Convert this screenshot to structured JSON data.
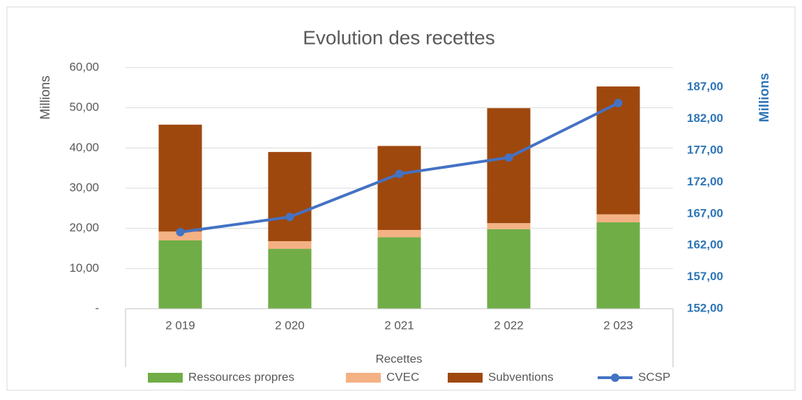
{
  "chart_data": {
    "type": "bar",
    "stacked": true,
    "title": "Evolution des recettes",
    "x_label": "Recettes",
    "y_label": "Millions",
    "y2_label": "Millions",
    "categories": [
      "2 019",
      "2 020",
      "2 021",
      "2 022",
      "2 023"
    ],
    "series": [
      {
        "name": "Ressources propres",
        "color": "#70ad47",
        "values": [
          17,
          14.9,
          17.8,
          19.8,
          21.5
        ]
      },
      {
        "name": "CVEC",
        "color": "#f4b183",
        "values": [
          2.2,
          1.9,
          1.8,
          1.5,
          2.0
        ]
      },
      {
        "name": "Subventions",
        "color": "#9e480e",
        "values": [
          26.6,
          22.2,
          20.9,
          28.6,
          31.8
        ]
      },
      {
        "name": "SCSP",
        "color": "#4472c4",
        "type": "line",
        "axis": "y2",
        "values": [
          164.1,
          166.5,
          173.3,
          175.9,
          184.5
        ]
      }
    ],
    "ylim": [
      0,
      60
    ],
    "yticks": [
      {
        "value": 0,
        "label": "-"
      },
      {
        "value": 10,
        "label": "10,00"
      },
      {
        "value": 20,
        "label": "20,00"
      },
      {
        "value": 30,
        "label": "30,00"
      },
      {
        "value": 40,
        "label": "40,00"
      },
      {
        "value": 50,
        "label": "50,00"
      },
      {
        "value": 60,
        "label": "60,00"
      }
    ],
    "y2lim": [
      152,
      190.1
    ],
    "y2ticks": [
      {
        "value": 152,
        "label": "152,00"
      },
      {
        "value": 157,
        "label": "157,00"
      },
      {
        "value": 162,
        "label": "162,00"
      },
      {
        "value": 167,
        "label": "167,00"
      },
      {
        "value": 172,
        "label": "172,00"
      },
      {
        "value": 177,
        "label": "177,00"
      },
      {
        "value": 182,
        "label": "182,00"
      },
      {
        "value": 187,
        "label": "187,00"
      }
    ],
    "grid": true,
    "legend": "bottom"
  }
}
